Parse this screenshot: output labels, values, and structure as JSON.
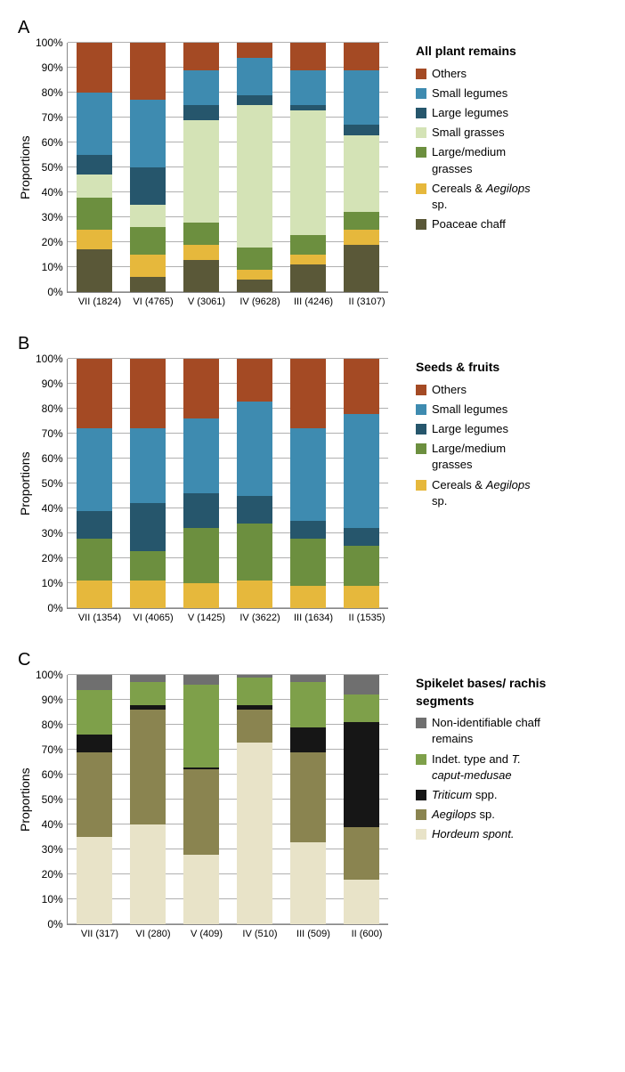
{
  "yAxisLabel": "Proportions",
  "yTicks": [
    "100%",
    "90%",
    "80%",
    "70%",
    "60%",
    "50%",
    "40%",
    "30%",
    "20%",
    "10%",
    "0%"
  ],
  "gridPositions": [
    0,
    10,
    20,
    30,
    40,
    50,
    60,
    70,
    80,
    90,
    100
  ],
  "colors": {
    "others": "#a44a24",
    "smallLegumes": "#3e8bb0",
    "largeLegumes": "#26566c",
    "smallGrasses": "#d4e3b6",
    "largeGrasses": "#6c8f3f",
    "cereals": "#e6b83c",
    "poaceae": "#5a5838",
    "nonId": "#6f6f6f",
    "indet": "#7ea04a",
    "triticum": "#161616",
    "aegilops": "#8a8450",
    "hordeum": "#e8e3c8"
  },
  "panels": {
    "A": {
      "label": "A",
      "legendTitle": "All plant remains",
      "legendOrder": [
        "others",
        "smallLegumes",
        "largeLegumes",
        "smallGrasses",
        "largeGrasses",
        "cereals",
        "poaceae"
      ],
      "legendLabels": {
        "others": "Others",
        "smallLegumes": "Small legumes",
        "largeLegumes": "Large legumes",
        "smallGrasses": "Small grasses",
        "largeGrasses": "Large/medium grasses",
        "cereals": "Cereals & <span class=\"italic\">Aegilops</span> sp.",
        "poaceae": "Poaceae chaff"
      },
      "categories": [
        "VII (1824)",
        "VI (4765)",
        "V (3061)",
        "IV (9628)",
        "III (4246)",
        "II (3107)"
      ],
      "stackOrder": [
        "poaceae",
        "cereals",
        "largeGrasses",
        "smallGrasses",
        "largeLegumes",
        "smallLegumes",
        "others"
      ],
      "data": [
        {
          "poaceae": 17,
          "cereals": 8,
          "largeGrasses": 13,
          "smallGrasses": 9,
          "largeLegumes": 8,
          "smallLegumes": 25,
          "others": 20
        },
        {
          "poaceae": 6,
          "cereals": 9,
          "largeGrasses": 11,
          "smallGrasses": 9,
          "largeLegumes": 15,
          "smallLegumes": 27,
          "others": 23
        },
        {
          "poaceae": 13,
          "cereals": 6,
          "largeGrasses": 9,
          "smallGrasses": 41,
          "largeLegumes": 6,
          "smallLegumes": 14,
          "others": 11
        },
        {
          "poaceae": 5,
          "cereals": 4,
          "largeGrasses": 9,
          "smallGrasses": 57,
          "largeLegumes": 4,
          "smallLegumes": 15,
          "others": 6
        },
        {
          "poaceae": 11,
          "cereals": 4,
          "largeGrasses": 8,
          "smallGrasses": 50,
          "largeLegumes": 2,
          "smallLegumes": 14,
          "others": 11
        },
        {
          "poaceae": 19,
          "cereals": 6,
          "largeGrasses": 7,
          "smallGrasses": 31,
          "largeLegumes": 4,
          "smallLegumes": 22,
          "others": 11
        }
      ]
    },
    "B": {
      "label": "B",
      "legendTitle": "Seeds & fruits",
      "legendOrder": [
        "others",
        "smallLegumes",
        "largeLegumes",
        "largeGrasses",
        "cereals"
      ],
      "legendLabels": {
        "others": "Others",
        "smallLegumes": "Small legumes",
        "largeLegumes": "Large legumes",
        "largeGrasses": "Large/medium grasses",
        "cereals": "Cereals & <span class=\"italic\">Aegilops</span> sp."
      },
      "categories": [
        "VII (1354)",
        "VI (4065)",
        "V (1425)",
        "IV (3622)",
        "III (1634)",
        "II (1535)"
      ],
      "stackOrder": [
        "cereals",
        "largeGrasses",
        "largeLegumes",
        "smallLegumes",
        "others"
      ],
      "data": [
        {
          "cereals": 11,
          "largeGrasses": 17,
          "largeLegumes": 11,
          "smallLegumes": 33,
          "others": 28
        },
        {
          "cereals": 11,
          "largeGrasses": 12,
          "largeLegumes": 19,
          "smallLegumes": 30,
          "others": 28
        },
        {
          "cereals": 10,
          "largeGrasses": 22,
          "largeLegumes": 14,
          "smallLegumes": 30,
          "others": 24
        },
        {
          "cereals": 11,
          "largeGrasses": 23,
          "largeLegumes": 11,
          "smallLegumes": 38,
          "others": 17
        },
        {
          "cereals": 9,
          "largeGrasses": 19,
          "largeLegumes": 7,
          "smallLegumes": 37,
          "others": 28
        },
        {
          "cereals": 9,
          "largeGrasses": 16,
          "largeLegumes": 7,
          "smallLegumes": 46,
          "others": 22
        }
      ]
    },
    "C": {
      "label": "C",
      "legendTitle": "Spikelet bases/ rachis segments",
      "legendOrder": [
        "nonId",
        "indet",
        "triticum",
        "aegilops",
        "hordeum"
      ],
      "legendLabels": {
        "nonId": "Non-identifiable chaff remains",
        "indet": "Indet. type and <span class=\"italic\">T. caput-medusae</span>",
        "triticum": "<span class=\"italic\">Triticum</span> spp.",
        "aegilops": "<span class=\"italic\">Aegilops</span> sp.",
        "hordeum": "<span class=\"italic\">Hordeum spont.</span>"
      },
      "categories": [
        "VII (317)",
        "VI (280)",
        "V (409)",
        "IV (510)",
        "III (509)",
        "II (600)"
      ],
      "stackOrder": [
        "hordeum",
        "aegilops",
        "triticum",
        "indet",
        "nonId"
      ],
      "data": [
        {
          "hordeum": 35,
          "aegilops": 34,
          "triticum": 7,
          "indet": 18,
          "nonId": 6
        },
        {
          "hordeum": 40,
          "aegilops": 46,
          "triticum": 2,
          "indet": 9,
          "nonId": 3
        },
        {
          "hordeum": 28,
          "aegilops": 34,
          "triticum": 1,
          "indet": 33,
          "nonId": 4
        },
        {
          "hordeum": 73,
          "aegilops": 13,
          "triticum": 2,
          "indet": 11,
          "nonId": 1
        },
        {
          "hordeum": 33,
          "aegilops": 36,
          "triticum": 10,
          "indet": 18,
          "nonId": 3
        },
        {
          "hordeum": 18,
          "aegilops": 21,
          "triticum": 42,
          "indet": 11,
          "nonId": 8
        }
      ]
    }
  }
}
